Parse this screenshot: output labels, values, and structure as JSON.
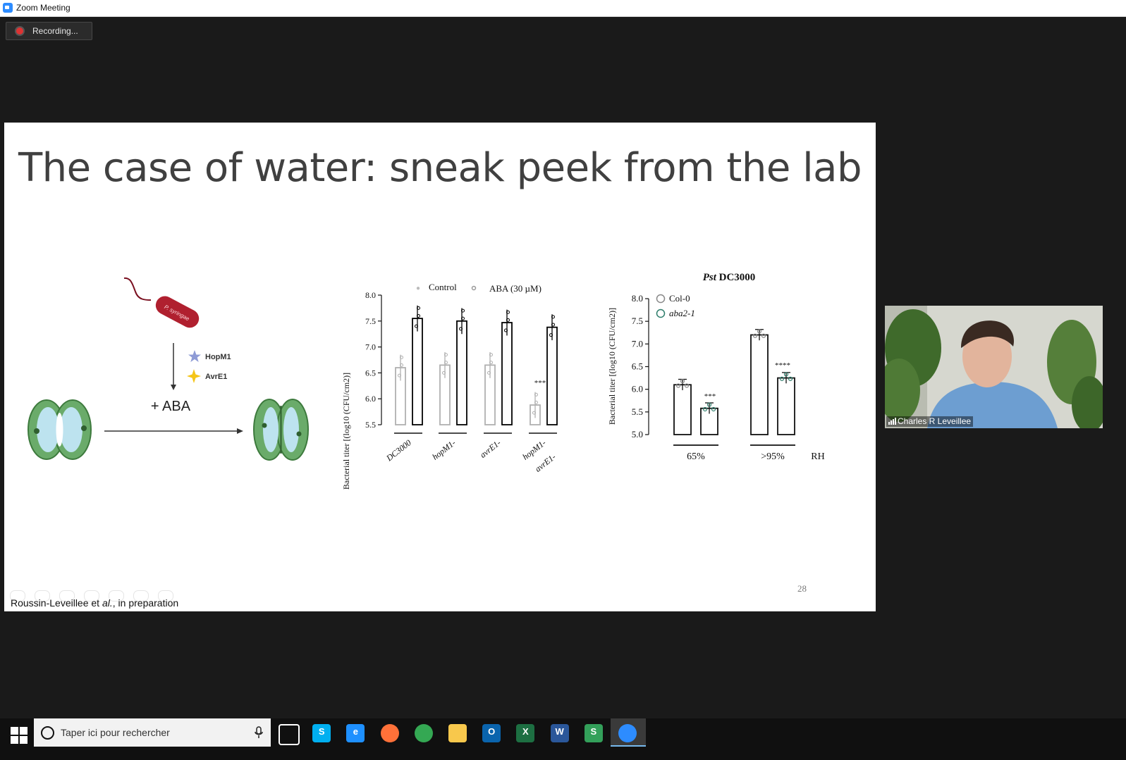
{
  "window": {
    "title": "Zoom Meeting"
  },
  "recording": {
    "label": "Recording..."
  },
  "slide": {
    "title": "The case of water: sneak peek from the lab",
    "number": "28",
    "citation_prefix": "Roussin-Leveillee et ",
    "citation_italic": "al.",
    "citation_suffix": ", in preparation",
    "diagram": {
      "bacterium_label": "P. syringae",
      "effector1": "HopM1",
      "effector2": "AvrE1",
      "treatment": "+ ABA",
      "effector1_color": "#8e9bd6",
      "effector2_color": "#f5c518"
    }
  },
  "chart_data": [
    {
      "type": "bar",
      "ylabel": "Bacterial titer [(log10 (CFU/cm2)]",
      "ylim": [
        5.5,
        8.0
      ],
      "yticks": [
        "5.5",
        "6.0",
        "6.5",
        "7.0",
        "7.5",
        "8.0"
      ],
      "categories": [
        "DC3000",
        "hopM1-",
        "avrE1-",
        "hopM1- avrE1-"
      ],
      "series": [
        {
          "name": "Control",
          "values": [
            6.6,
            6.65,
            6.65,
            5.88
          ],
          "color": "#b0b0b0"
        },
        {
          "name": "ABA (30 µM)",
          "values": [
            7.55,
            7.5,
            7.47,
            7.38
          ],
          "color": "#000000"
        }
      ],
      "annotations": [
        {
          "category": "hopM1- avrE1-",
          "series": "Control",
          "text": "***"
        }
      ],
      "legend": "top"
    },
    {
      "type": "bar",
      "title_italic": "Pst",
      "title": " DC3000",
      "ylabel": "Bacterial titer [(log10 (CFU/cm2)]",
      "ylim": [
        5.0,
        8.0
      ],
      "yticks": [
        "5.0",
        "5.5",
        "6.0",
        "6.5",
        "7.0",
        "7.5",
        "8.0"
      ],
      "categories": [
        "65%",
        ">95%"
      ],
      "category_axis_label": "RH",
      "series": [
        {
          "name": "Col-0",
          "values": [
            6.1,
            7.2
          ],
          "color": "#888888"
        },
        {
          "name": "aba2-1",
          "values": [
            5.58,
            6.25
          ],
          "color": "#2e7d6b"
        }
      ],
      "annotations": [
        {
          "category": "65%",
          "series": "aba2-1",
          "text": "***"
        },
        {
          "category": ">95%",
          "series": "aba2-1",
          "text": "****"
        }
      ],
      "legend": "top-left"
    }
  ],
  "video": {
    "participant_name": "Charles R Leveillee"
  },
  "taskbar": {
    "search_placeholder": "Taper ici pour rechercher",
    "apps": [
      {
        "name": "task-view",
        "color": "#101010"
      },
      {
        "name": "skype",
        "color": "#00aff0",
        "glyph": "S"
      },
      {
        "name": "internet-explorer",
        "color": "#1e90ff",
        "glyph": "e"
      },
      {
        "name": "firefox",
        "color": "#ff7139"
      },
      {
        "name": "chrome",
        "color": "#34a853"
      },
      {
        "name": "file-explorer",
        "color": "#f8c84c"
      },
      {
        "name": "outlook",
        "color": "#0a64ad",
        "glyph": "O"
      },
      {
        "name": "excel",
        "color": "#1d6f42",
        "glyph": "X"
      },
      {
        "name": "word",
        "color": "#2b579a",
        "glyph": "W"
      },
      {
        "name": "sway",
        "color": "#33a05a",
        "glyph": "S"
      },
      {
        "name": "zoom",
        "color": "#2d8cff"
      }
    ]
  }
}
